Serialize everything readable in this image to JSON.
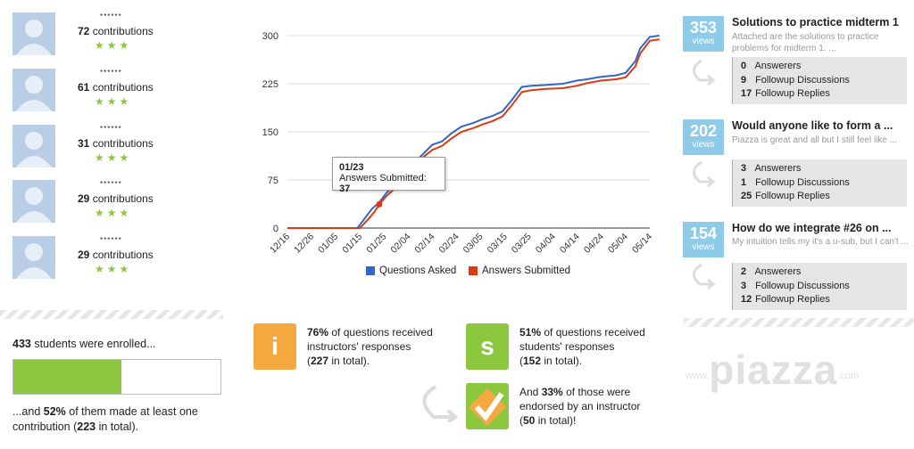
{
  "contributors": [
    {
      "name": "******",
      "count": "72",
      "label": "contributions"
    },
    {
      "name": "******",
      "count": "61",
      "label": "contributions"
    },
    {
      "name": "******",
      "count": "31",
      "label": "contributions"
    },
    {
      "name": "******",
      "count": "29",
      "label": "contributions"
    },
    {
      "name": "******",
      "count": "29",
      "label": "contributions"
    }
  ],
  "stars": "★★★",
  "enrollment": {
    "count": "433",
    "text": "students were enrolled...",
    "pre": "...and",
    "percent": "52%",
    "mid": "of them made at least one contribution (",
    "total": "223",
    "post": "in total).",
    "fill": 0.52
  },
  "chart_data": {
    "type": "line",
    "x_ticks": [
      "12/16",
      "12/26",
      "01/05",
      "01/15",
      "01/25",
      "02/04",
      "02/14",
      "02/24",
      "03/05",
      "03/15",
      "03/25",
      "04/04",
      "04/14",
      "04/24",
      "05/04",
      "05/14"
    ],
    "ylim": [
      0,
      300
    ],
    "y_ticks": [
      0,
      75,
      150,
      225,
      300
    ],
    "series": [
      {
        "name": "Questions Asked",
        "color": "#3366cc",
        "x": [
          "12/16",
          "01/14",
          "01/17",
          "01/20",
          "01/23",
          "01/26",
          "02/01",
          "02/06",
          "02/10",
          "02/14",
          "02/18",
          "02/22",
          "02/26",
          "03/02",
          "03/06",
          "03/10",
          "03/14",
          "03/18",
          "03/22",
          "03/26",
          "04/01",
          "04/08",
          "04/14",
          "04/18",
          "04/24",
          "04/30",
          "05/04",
          "05/08",
          "05/10",
          "05/14",
          "05/18"
        ],
        "y": [
          0,
          0,
          15,
          30,
          40,
          55,
          75,
          100,
          115,
          130,
          135,
          148,
          158,
          164,
          170,
          175,
          182,
          200,
          220,
          222,
          223,
          225,
          230,
          232,
          236,
          238,
          242,
          260,
          280,
          298,
          300
        ]
      },
      {
        "name": "Answers Submitted",
        "color": "#dc3912",
        "x": [
          "12/16",
          "01/15",
          "01/18",
          "01/21",
          "01/23",
          "01/26",
          "02/01",
          "02/06",
          "02/10",
          "02/14",
          "02/18",
          "02/22",
          "02/26",
          "03/02",
          "03/06",
          "03/10",
          "03/14",
          "03/18",
          "03/22",
          "03/26",
          "04/01",
          "04/08",
          "04/14",
          "04/18",
          "04/24",
          "04/30",
          "05/04",
          "05/08",
          "05/10",
          "05/14",
          "05/18"
        ],
        "y": [
          0,
          0,
          12,
          25,
          37,
          50,
          70,
          95,
          110,
          122,
          128,
          140,
          150,
          156,
          162,
          167,
          174,
          192,
          212,
          215,
          217,
          218,
          222,
          226,
          230,
          232,
          235,
          252,
          272,
          292,
          294
        ]
      }
    ],
    "tooltip": {
      "date": "01/23",
      "label": "Answers Submitted:",
      "value": "37"
    }
  },
  "stats": [
    {
      "icon": "i",
      "color": "#f7a941",
      "percent": "76%",
      "line1": "of questions received",
      "line2": "instructors' responses",
      "count": "227",
      "tail": "in total)."
    },
    {
      "icon": "s",
      "color": "#8dc63f",
      "percent": "51%",
      "line1": "of questions received",
      "line2": "students' responses",
      "count": "152",
      "tail": "in total)."
    },
    {
      "icon": "check",
      "color": "#8dc63f",
      "pre": "And",
      "percent": "33%",
      "line1": "of those were",
      "line2": "endorsed by an instructor",
      "count": "50",
      "tail": "in total)!"
    }
  ],
  "questions": [
    {
      "views": "353",
      "views_label": "views",
      "title": "Solutions to practice midterm 1",
      "snippet": "Attached are the solutions to practice problems for midterm 1. ...",
      "answerers": "0",
      "answerers_label": "Answerers",
      "followups": "9",
      "followups_label": "Followup Discussions",
      "replies": "17",
      "replies_label": "Followup Replies"
    },
    {
      "views": "202",
      "views_label": "views",
      "title": "Would anyone like to form a ...",
      "snippet": "Piazza is great and all but I still feel like ...",
      "answerers": "3",
      "answerers_label": "Answerers",
      "followups": "1",
      "followups_label": "Followup Discussions",
      "replies": "25",
      "replies_label": "Followup Replies"
    },
    {
      "views": "154",
      "views_label": "views",
      "title": "How do we integrate #26 on ...",
      "snippet": "My intuition tells my it's a u-sub, but I can't ...",
      "answerers": "2",
      "answerers_label": "Answerers",
      "followups": "3",
      "followups_label": "Followup Discussions",
      "replies": "12",
      "replies_label": "Followup Replies"
    }
  ],
  "logo": {
    "pre": "www.",
    "brand": "piazza",
    "post": ".com"
  }
}
